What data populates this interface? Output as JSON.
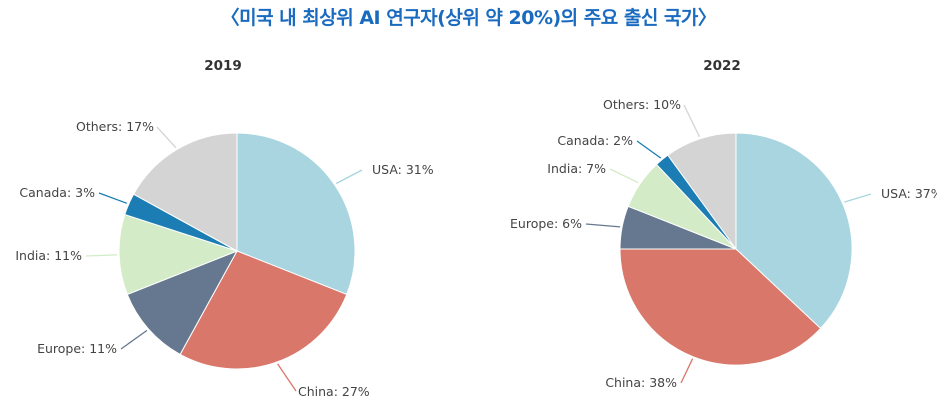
{
  "page": {
    "title": "〈미국 내 최상위 AI 연구자(상위 약 20%)의 주요 출신 국가〉"
  },
  "colors": {
    "title": "#1a6bbf",
    "USA": "#a8d5df",
    "China": "#d9776a",
    "Europe": "#66788f",
    "India": "#d3ecc7",
    "Canada": "#1b7db3",
    "Others": "#d4d4d4"
  },
  "chart_data": [
    {
      "type": "pie",
      "title": "2019",
      "slices": [
        {
          "label": "USA",
          "value": 31,
          "text": "USA: 31%"
        },
        {
          "label": "China",
          "value": 27,
          "text": "China: 27%"
        },
        {
          "label": "Europe",
          "value": 11,
          "text": "Europe: 11%"
        },
        {
          "label": "India",
          "value": 11,
          "text": "India: 11%"
        },
        {
          "label": "Canada",
          "value": 3,
          "text": "Canada: 3%"
        },
        {
          "label": "Others",
          "value": 17,
          "text": "Others: 17%"
        }
      ]
    },
    {
      "type": "pie",
      "title": "2022",
      "slices": [
        {
          "label": "USA",
          "value": 37,
          "text": "USA: 37%"
        },
        {
          "label": "China",
          "value": 38,
          "text": "China: 38%"
        },
        {
          "label": "Europe",
          "value": 6,
          "text": "Europe: 6%"
        },
        {
          "label": "India",
          "value": 7,
          "text": "India: 7%"
        },
        {
          "label": "Canada",
          "value": 2,
          "text": "Canada: 2%"
        },
        {
          "label": "Others",
          "value": 10,
          "text": "Others: 10%"
        }
      ]
    }
  ]
}
